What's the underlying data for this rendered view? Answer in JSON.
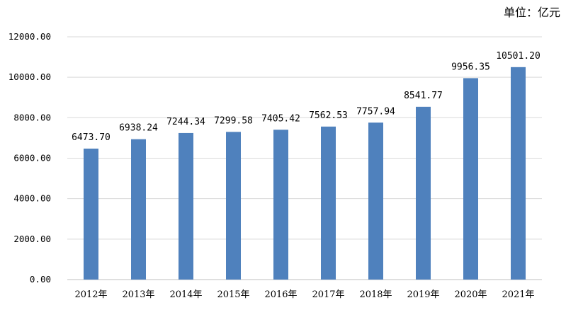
{
  "chart_data": {
    "type": "bar",
    "unit_label": "单位：亿元",
    "categories": [
      "2012年",
      "2013年",
      "2014年",
      "2015年",
      "2016年",
      "2017年",
      "2018年",
      "2019年",
      "2020年",
      "2021年"
    ],
    "values": [
      6473.7,
      6938.24,
      7244.34,
      7299.58,
      7405.42,
      7562.53,
      7757.94,
      8541.77,
      9956.35,
      10501.2
    ],
    "data_labels": [
      "6473.70",
      "6938.24",
      "7244.34",
      "7299.58",
      "7405.42",
      "7562.53",
      "7757.94",
      "8541.77",
      "9956.35",
      "10501.20"
    ],
    "y_ticks": [
      "0.00",
      "2000.00",
      "4000.00",
      "6000.00",
      "8000.00",
      "10000.00",
      "12000.00"
    ],
    "ylim": [
      0,
      12000
    ],
    "grid": true,
    "legend": "none",
    "bar_color": "#4f81bd"
  }
}
